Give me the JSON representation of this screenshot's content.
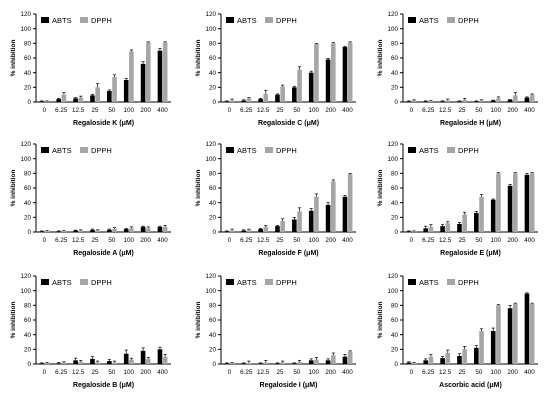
{
  "colors": {
    "abts": "#000000",
    "dpph": "#a6a6a6",
    "axis": "#000000"
  },
  "chart_data": [
    {
      "type": "bar",
      "xlabel": "Regaloside K (μM)",
      "ylabel": "% inhibition",
      "categories": [
        "0",
        "6.25",
        "12.5",
        "25",
        "50",
        "100",
        "200",
        "400"
      ],
      "ylim": [
        0,
        120
      ],
      "yticks": [
        0,
        20,
        40,
        60,
        80,
        100,
        120
      ],
      "legend": "top-left",
      "series": [
        {
          "name": "ABTS",
          "values": [
            1,
            4,
            5,
            9,
            15,
            30,
            52,
            70
          ],
          "errors": [
            0.5,
            1,
            1,
            1.5,
            1.5,
            2,
            3,
            3
          ]
        },
        {
          "name": "DPPH",
          "values": [
            1,
            10,
            6,
            20,
            34,
            69,
            81,
            81
          ],
          "errors": [
            0.5,
            3,
            2,
            5,
            3,
            2,
            1,
            1
          ]
        }
      ]
    },
    {
      "type": "bar",
      "xlabel": "Regaloside C (μM)",
      "ylabel": "% inhibition",
      "categories": [
        "0",
        "6.25",
        "12.5",
        "25",
        "50",
        "100",
        "200",
        "400"
      ],
      "ylim": [
        0,
        120
      ],
      "yticks": [
        0,
        20,
        40,
        60,
        80,
        100,
        120
      ],
      "legend": "top-left",
      "series": [
        {
          "name": "ABTS",
          "values": [
            1,
            2,
            4,
            10,
            20,
            40,
            58,
            75
          ],
          "errors": [
            0.5,
            1,
            1,
            1,
            1.5,
            2,
            1.5,
            1
          ]
        },
        {
          "name": "DPPH",
          "values": [
            2,
            5,
            11,
            21,
            44,
            79,
            80,
            81
          ],
          "errors": [
            2,
            1,
            5,
            2,
            4,
            1,
            1,
            1
          ]
        }
      ]
    },
    {
      "type": "bar",
      "xlabel": "Regaloside H (μM)",
      "ylabel": "% inhibition",
      "categories": [
        "0",
        "6.25",
        "12.5",
        "25",
        "50",
        "100",
        "200",
        "400"
      ],
      "ylim": [
        0,
        120
      ],
      "yticks": [
        0,
        20,
        40,
        60,
        80,
        100,
        120
      ],
      "legend": "top-left",
      "series": [
        {
          "name": "ABTS",
          "values": [
            1,
            1,
            1,
            1,
            1,
            2,
            3,
            6
          ],
          "errors": [
            0.5,
            0.5,
            0.5,
            0.5,
            0.5,
            0.5,
            0.5,
            1
          ]
        },
        {
          "name": "DPPH",
          "values": [
            2,
            1,
            2,
            3,
            2,
            5,
            9,
            10
          ],
          "errors": [
            1,
            1,
            2,
            2,
            1,
            2,
            4,
            1
          ]
        }
      ]
    },
    {
      "type": "bar",
      "xlabel": "Regaloside A (μM)",
      "ylabel": "% inhibition",
      "categories": [
        "0",
        "6.25",
        "12.5",
        "25",
        "50",
        "100",
        "200",
        "400"
      ],
      "ylim": [
        0,
        120
      ],
      "yticks": [
        0,
        20,
        40,
        60,
        80,
        100,
        120
      ],
      "legend": "top-left",
      "series": [
        {
          "name": "ABTS",
          "values": [
            1,
            1,
            2,
            3,
            3,
            4,
            7,
            7
          ],
          "errors": [
            0.5,
            0.5,
            0.5,
            1,
            1,
            1,
            1,
            1
          ]
        },
        {
          "name": "DPPH",
          "values": [
            1,
            1,
            2,
            2,
            4,
            5,
            5,
            7
          ],
          "errors": [
            1,
            1,
            1,
            1,
            2,
            2,
            2,
            2
          ]
        }
      ]
    },
    {
      "type": "bar",
      "xlabel": "Regaloside F (μM)",
      "ylabel": "% inhibition",
      "categories": [
        "0",
        "6.25",
        "12.5",
        "25",
        "50",
        "100",
        "200",
        "400"
      ],
      "ylim": [
        0,
        120
      ],
      "yticks": [
        0,
        20,
        40,
        60,
        80,
        100,
        120
      ],
      "legend": "top-left",
      "series": [
        {
          "name": "ABTS",
          "values": [
            1,
            2,
            4,
            8,
            17,
            29,
            37,
            48
          ],
          "errors": [
            0.5,
            1,
            1,
            1,
            3,
            3,
            3,
            2
          ]
        },
        {
          "name": "DPPH",
          "values": [
            2,
            3,
            7,
            15,
            28,
            48,
            69,
            79
          ],
          "errors": [
            2,
            1,
            2,
            3,
            5,
            4,
            2,
            1
          ]
        }
      ]
    },
    {
      "type": "bar",
      "xlabel": "Regaloside E (μM)",
      "ylabel": "% inhibition",
      "categories": [
        "0",
        "6.25",
        "12.5",
        "25",
        "50",
        "100",
        "200",
        "400"
      ],
      "ylim": [
        0,
        120
      ],
      "yticks": [
        0,
        20,
        40,
        60,
        80,
        100,
        120
      ],
      "legend": "top-left",
      "series": [
        {
          "name": "ABTS",
          "values": [
            1,
            5,
            8,
            11,
            26,
            44,
            63,
            78
          ],
          "errors": [
            0.5,
            3,
            2,
            2,
            2,
            1,
            2,
            2
          ]
        },
        {
          "name": "DPPH",
          "values": [
            1,
            7,
            12,
            24,
            48,
            80,
            80,
            80
          ],
          "errors": [
            0.5,
            3,
            2,
            3,
            3,
            1,
            1,
            1
          ]
        }
      ]
    },
    {
      "type": "bar",
      "xlabel": "Regaloside B (μM)",
      "ylabel": "% inhibition",
      "categories": [
        "0",
        "6.25",
        "12.5",
        "25",
        "50",
        "100",
        "200",
        "400"
      ],
      "ylim": [
        0,
        120
      ],
      "yticks": [
        0,
        20,
        40,
        60,
        80,
        100,
        120
      ],
      "legend": "top-left",
      "series": [
        {
          "name": "ABTS",
          "values": [
            1,
            1,
            5,
            7,
            4,
            14,
            18,
            20
          ],
          "errors": [
            0.5,
            1,
            3,
            3,
            2,
            5,
            4,
            3
          ]
        },
        {
          "name": "DPPH",
          "values": [
            1,
            2,
            3,
            2,
            2,
            6,
            7,
            10
          ],
          "errors": [
            1,
            1,
            2,
            2,
            2,
            2,
            2,
            3
          ]
        }
      ]
    },
    {
      "type": "bar",
      "xlabel": "Regaloside I (μM)",
      "ylabel": "% inhibition",
      "categories": [
        "0",
        "6.25",
        "12.5",
        "25",
        "50",
        "100",
        "200",
        "400"
      ],
      "ylim": [
        0,
        120
      ],
      "yticks": [
        0,
        20,
        40,
        60,
        80,
        100,
        120
      ],
      "legend": "top-left",
      "series": [
        {
          "name": "ABTS",
          "values": [
            1,
            1,
            1,
            1,
            1,
            5,
            5,
            10
          ],
          "errors": [
            0.5,
            0.5,
            0.5,
            0.5,
            0.5,
            2,
            2,
            3
          ]
        },
        {
          "name": "DPPH",
          "values": [
            1,
            1,
            2,
            2,
            3,
            6,
            12,
            17
          ],
          "errors": [
            1,
            3,
            3,
            2,
            2,
            3,
            3,
            1
          ]
        }
      ]
    },
    {
      "type": "bar",
      "xlabel": "Ascorbic acid (μM)",
      "ylabel": "% inhibition",
      "categories": [
        "0",
        "6.25",
        "12.5",
        "25",
        "50",
        "100",
        "200",
        "400"
      ],
      "ylim": [
        0,
        120
      ],
      "yticks": [
        0,
        20,
        40,
        60,
        80,
        100,
        120
      ],
      "legend": "top-left",
      "series": [
        {
          "name": "ABTS",
          "values": [
            2,
            5,
            8,
            11,
            22,
            45,
            76,
            96
          ],
          "errors": [
            1,
            2,
            2,
            3,
            3,
            4,
            4,
            1
          ]
        },
        {
          "name": "DPPH",
          "values": [
            1,
            10,
            15,
            20,
            45,
            80,
            82,
            82
          ],
          "errors": [
            1,
            3,
            4,
            4,
            3,
            1,
            1,
            1
          ]
        }
      ]
    }
  ]
}
